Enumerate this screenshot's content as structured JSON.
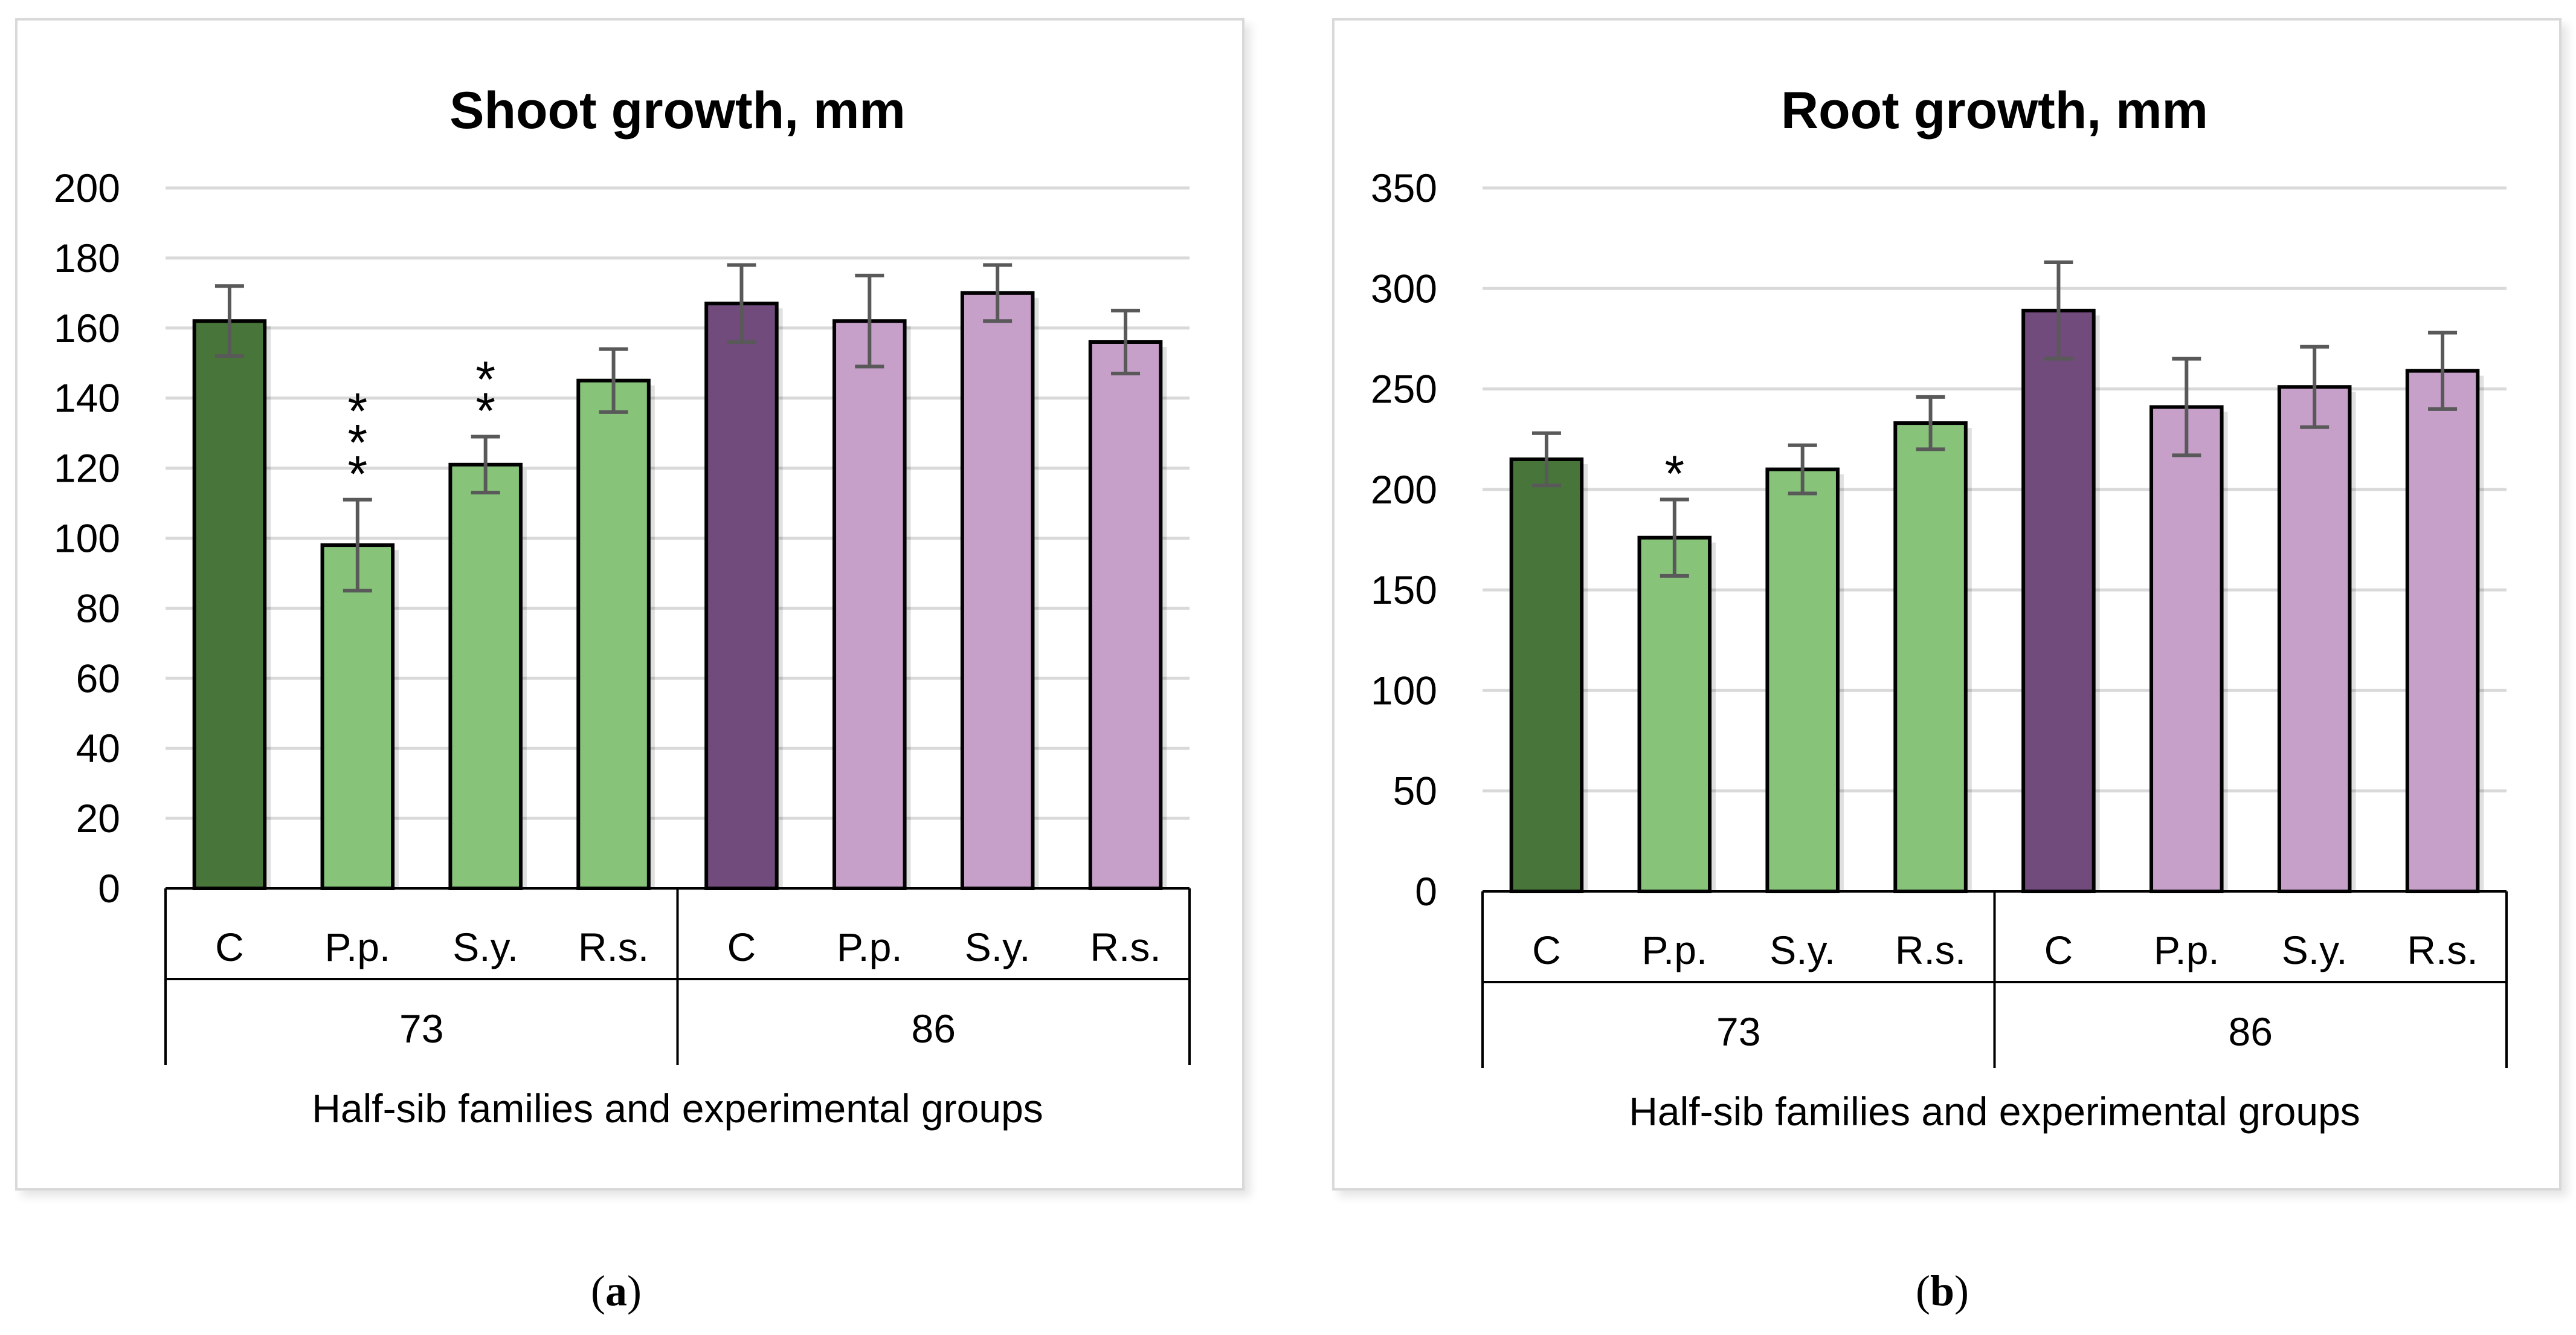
{
  "chart_data": [
    {
      "type": "bar",
      "panel_label": "a",
      "title": "Shoot growth, mm",
      "xlabel": "Half-sib families and experimental groups",
      "ylabel": "",
      "ylim": [
        0,
        200
      ],
      "yticks": [
        0,
        20,
        40,
        60,
        80,
        100,
        120,
        140,
        160,
        180,
        200
      ],
      "grid": true,
      "groups": [
        {
          "name": "73",
          "categories": [
            "C",
            "P.p.",
            "S.y.",
            "R.s."
          ],
          "values": [
            162,
            98,
            121,
            145
          ],
          "errors": [
            10,
            13,
            8,
            9
          ],
          "significance": [
            "",
            "***",
            "**",
            ""
          ],
          "colors": [
            "#48763a",
            "#87c47a",
            "#87c47a",
            "#87c47a"
          ]
        },
        {
          "name": "86",
          "categories": [
            "C",
            "P.p.",
            "S.y.",
            "R.s."
          ],
          "values": [
            167,
            162,
            170,
            156
          ],
          "errors": [
            11,
            13,
            8,
            9
          ],
          "significance": [
            "",
            "",
            "",
            ""
          ],
          "colors": [
            "#714b7c",
            "#c7a0ca",
            "#c7a0ca",
            "#c7a0ca"
          ]
        }
      ]
    },
    {
      "type": "bar",
      "panel_label": "b",
      "title": "Root growth, mm",
      "xlabel": "Half-sib families and experimental groups",
      "ylabel": "",
      "ylim": [
        0,
        350
      ],
      "yticks": [
        0,
        50,
        100,
        150,
        200,
        250,
        300,
        350
      ],
      "grid": true,
      "groups": [
        {
          "name": "73",
          "categories": [
            "C",
            "P.p.",
            "S.y.",
            "R.s."
          ],
          "values": [
            215,
            176,
            210,
            233
          ],
          "errors": [
            13,
            19,
            12,
            13
          ],
          "significance": [
            "",
            "*",
            "",
            ""
          ],
          "colors": [
            "#48763a",
            "#87c47a",
            "#87c47a",
            "#87c47a"
          ]
        },
        {
          "name": "86",
          "categories": [
            "C",
            "P.p.",
            "S.y.",
            "R.s."
          ],
          "values": [
            289,
            241,
            251,
            259
          ],
          "errors": [
            24,
            24,
            20,
            19
          ],
          "significance": [
            "",
            "",
            "",
            ""
          ],
          "colors": [
            "#714b7c",
            "#c7a0ca",
            "#c7a0ca",
            "#c7a0ca"
          ]
        }
      ]
    }
  ]
}
